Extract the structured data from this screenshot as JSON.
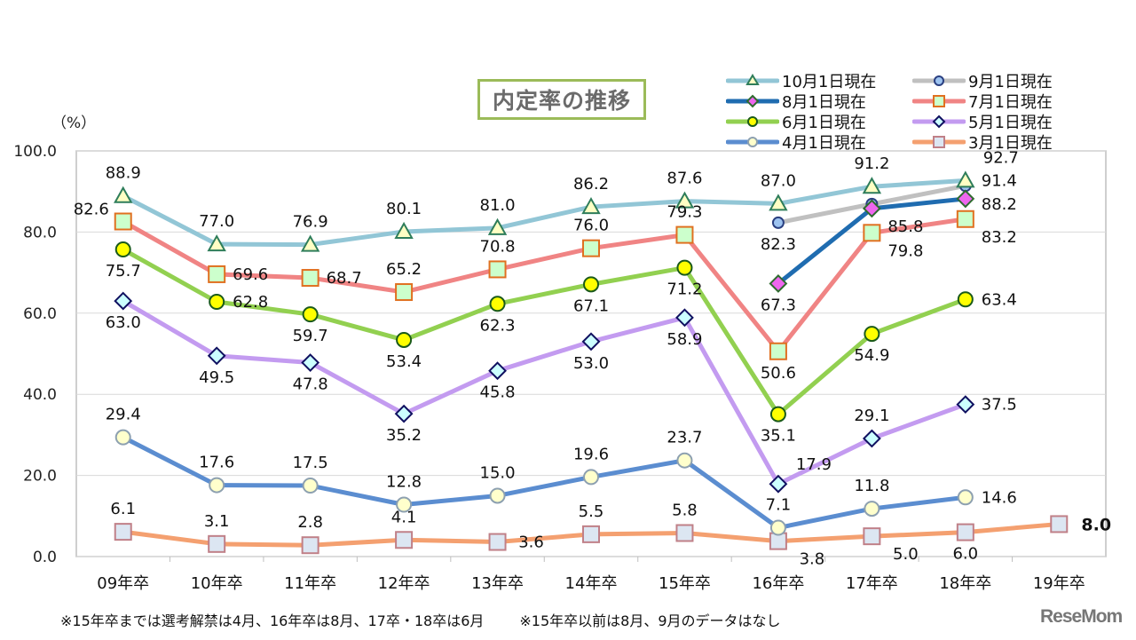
{
  "chart_data": {
    "type": "line",
    "title": "内定率の推移",
    "ylabel": "（%）",
    "ylim": [
      0,
      100
    ],
    "yticks": [
      "0.0",
      "20.0",
      "40.0",
      "60.0",
      "80.0",
      "100.0"
    ],
    "grid": true,
    "legend_position": "top-right",
    "categories": [
      "09年卒",
      "10年卒",
      "11年卒",
      "12年卒",
      "13年卒",
      "14年卒",
      "15年卒",
      "16年卒",
      "17年卒",
      "18年卒",
      "19年卒"
    ],
    "series": [
      {
        "name": "10月1日現在",
        "line_color": "#92c6d6",
        "marker": "triangle",
        "marker_fill": "#ffffc4",
        "marker_stroke": "#2e7d5a",
        "values": [
          88.9,
          77.0,
          76.9,
          80.1,
          81.0,
          86.2,
          87.6,
          87.0,
          91.2,
          92.7,
          null
        ]
      },
      {
        "name": "9月1日現在",
        "line_color": "#c0c0c0",
        "marker": "circle",
        "marker_fill": "#9dc3f0",
        "marker_stroke": "#2a3f80",
        "values": [
          null,
          null,
          null,
          null,
          null,
          null,
          null,
          82.3,
          86.9,
          91.4,
          null
        ],
        "labeled": [
          false,
          false,
          false,
          false,
          false,
          false,
          false,
          true,
          false,
          true,
          false
        ]
      },
      {
        "name": "8月1日現在",
        "line_color": "#1f6cb0",
        "marker": "diamond",
        "marker_fill": "#ee66ee",
        "marker_stroke": "#2e6b2e",
        "values": [
          null,
          null,
          null,
          null,
          null,
          null,
          null,
          67.3,
          85.8,
          88.2,
          null
        ]
      },
      {
        "name": "7月1日現在",
        "line_color": "#f08484",
        "marker": "square",
        "marker_fill": "#ccffcc",
        "marker_stroke": "#e07020",
        "values": [
          82.6,
          69.6,
          68.7,
          65.2,
          70.8,
          76.0,
          79.3,
          50.6,
          79.8,
          83.2,
          null
        ]
      },
      {
        "name": "6月1日現在",
        "line_color": "#92d050",
        "marker": "circle",
        "marker_fill": "#ffff00",
        "marker_stroke": "#1a5a1a",
        "values": [
          75.7,
          62.8,
          59.7,
          53.4,
          62.3,
          67.1,
          71.2,
          35.1,
          54.9,
          63.4,
          null
        ]
      },
      {
        "name": "5月1日現在",
        "line_color": "#c39bf0",
        "marker": "diamond",
        "marker_fill": "#ccffff",
        "marker_stroke": "#101060",
        "values": [
          63.0,
          49.5,
          47.8,
          35.2,
          45.8,
          53.0,
          58.9,
          17.9,
          29.1,
          37.5,
          null
        ]
      },
      {
        "name": "4月1日現在",
        "line_color": "#5b8dd0",
        "marker": "circle",
        "marker_fill": "#ffffcc",
        "marker_stroke": "#8da0b0",
        "values": [
          29.4,
          17.6,
          17.5,
          12.8,
          15.0,
          19.6,
          23.7,
          7.1,
          11.8,
          14.6,
          null
        ]
      },
      {
        "name": "3月1日現在",
        "line_color": "#f4a070",
        "marker": "square",
        "marker_fill": "#dce6f2",
        "marker_stroke": "#c08088",
        "values": [
          6.1,
          3.1,
          2.8,
          4.1,
          3.6,
          5.5,
          5.8,
          3.8,
          5.0,
          6.0,
          8.0
        ]
      }
    ]
  },
  "notes": [
    "※15年卒までは選考解禁は4月、16年卒は8月、17卒・18卒は6月",
    "※15年卒以前は8月、9月のデータはなし"
  ],
  "logo": "ReseMom"
}
